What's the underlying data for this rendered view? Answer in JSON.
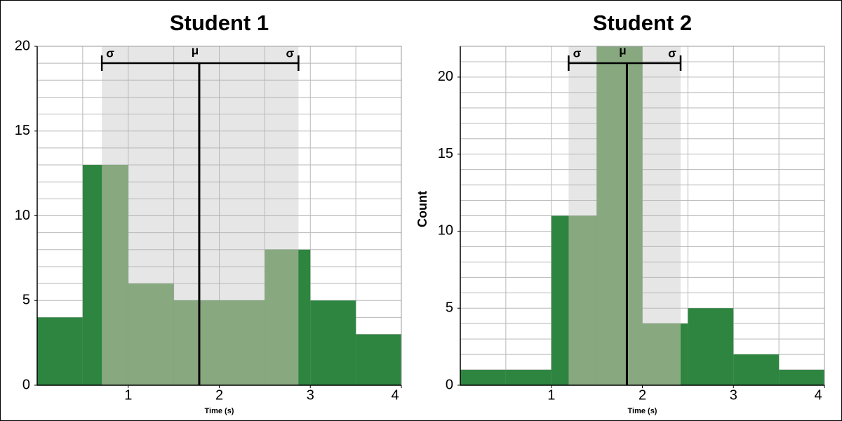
{
  "chart_data": [
    {
      "type": "histogram",
      "title": "Student 1",
      "x_label": "Time (s)",
      "bins": [
        0,
        0.5,
        1,
        1.5,
        2,
        2.5,
        3,
        3.5,
        4
      ],
      "values": [
        4,
        13,
        6,
        5,
        5,
        8,
        5,
        3
      ],
      "color": "#2e8540",
      "band_bar_color": "#88a880",
      "band_color": "#e6e6e6",
      "xlim": [
        0,
        4
      ],
      "xticks": [
        1,
        2,
        3,
        4
      ],
      "ylim": [
        0,
        20
      ],
      "yticks": [
        0,
        5,
        10,
        15,
        20
      ],
      "minor_yticks": [
        0,
        1,
        2,
        3,
        4,
        5,
        6,
        7,
        8,
        9,
        10,
        11,
        12,
        13,
        14,
        15,
        16,
        17,
        18,
        19,
        20
      ],
      "grid": true,
      "mean": 1.78,
      "mean_label": "μ",
      "sd_bounds": [
        0.71,
        2.87
      ],
      "sd_label": "σ"
    },
    {
      "type": "histogram",
      "title": "Student 2",
      "x_label": "Time (s)",
      "y_label": "Count",
      "bins": [
        0,
        0.5,
        1,
        1.5,
        2,
        2.5,
        3,
        3.5,
        4
      ],
      "values": [
        1,
        1,
        11,
        22,
        4,
        5,
        2,
        1
      ],
      "color": "#2e8540",
      "band_bar_color": "#88a880",
      "band_color": "#e6e6e6",
      "xlim": [
        0,
        4
      ],
      "xticks": [
        1,
        2,
        3,
        4
      ],
      "ylim": [
        0,
        22
      ],
      "yticks": [
        0,
        5,
        10,
        15,
        20
      ],
      "minor_yticks": [
        0,
        1,
        2,
        3,
        4,
        5,
        6,
        7,
        8,
        9,
        10,
        11,
        12,
        13,
        14,
        15,
        16,
        17,
        18,
        19,
        20,
        21,
        22
      ],
      "grid": true,
      "mean": 1.83,
      "mean_label": "μ",
      "sd_bounds": [
        1.19,
        2.42
      ],
      "sd_label": "σ"
    }
  ]
}
